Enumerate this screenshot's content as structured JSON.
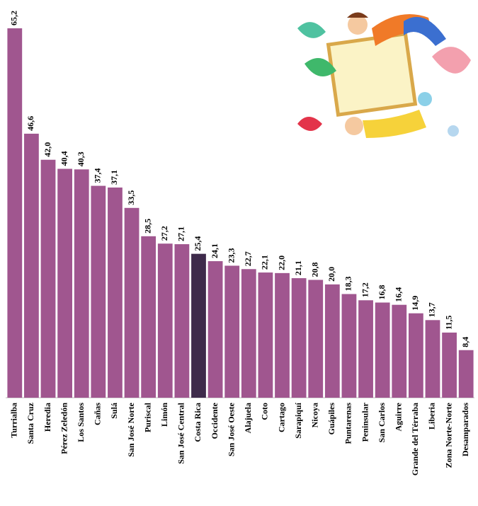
{
  "chart_data": {
    "type": "bar",
    "categories": [
      "Turrialba",
      "Santa Cruz",
      "Heredia",
      "Pérez Zeledón",
      "Los Santos",
      "Cañas",
      "Sulá",
      "San José Norte",
      "Puriscal",
      "Limón",
      "San José Central",
      "Costa Rica",
      "Occidente",
      "San José Oeste",
      "Alajuela",
      "Coto",
      "Cartago",
      "Sarapiquí",
      "Nicoya",
      "Guápiles",
      "Puntarenas",
      "Peninsular",
      "San Carlos",
      "Aguirre",
      "Grande del Térraba",
      "Liberia",
      "Zona Norte-Norte",
      "Desamparados"
    ],
    "values": [
      65.2,
      46.6,
      42.0,
      40.4,
      40.3,
      37.4,
      37.1,
      33.5,
      28.5,
      27.2,
      27.1,
      25.4,
      24.1,
      23.3,
      22.7,
      22.1,
      22.0,
      21.1,
      20.8,
      20.0,
      18.3,
      17.2,
      16.8,
      16.4,
      14.9,
      13.7,
      11.5,
      8.4
    ],
    "value_labels": [
      "65,2",
      "46,6",
      "42,0",
      "40,4",
      "40,3",
      "37,4",
      "37,1",
      "33,5",
      "28,5",
      "27,2",
      "27,1",
      "25,4",
      "24,1",
      "23,3",
      "22,7",
      "22,1",
      "22,0",
      "21,1",
      "20,8",
      "20,0",
      "18,3",
      "17,2",
      "16,8",
      "16,4",
      "14,9",
      "13,7",
      "11,5",
      "8,4"
    ],
    "colors": [
      "#a0568f",
      "#a0568f",
      "#a0568f",
      "#a0568f",
      "#a0568f",
      "#a0568f",
      "#a0568f",
      "#a0568f",
      "#a0568f",
      "#a0568f",
      "#a0568f",
      "#3e2b4b",
      "#a0568f",
      "#a0568f",
      "#a0568f",
      "#a0568f",
      "#a0568f",
      "#a0568f",
      "#a0568f",
      "#a0568f",
      "#a0568f",
      "#a0568f",
      "#a0568f",
      "#a0568f",
      "#a0568f",
      "#a0568f",
      "#a0568f",
      "#a0568f"
    ]
  }
}
